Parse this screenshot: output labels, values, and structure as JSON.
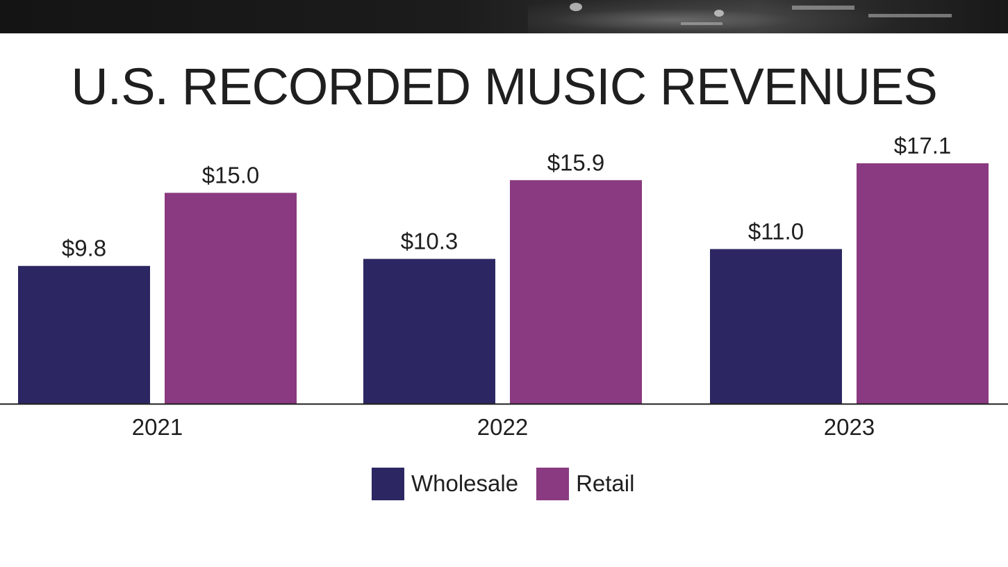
{
  "chart_data": {
    "type": "bar",
    "title": "U.S. RECORDED MUSIC REVENUES",
    "categories": [
      "2021",
      "2022",
      "2023"
    ],
    "series": [
      {
        "name": "Wholesale",
        "values": [
          9.8,
          10.3,
          11.0
        ],
        "labels": [
          "$9.8",
          "$10.3",
          "$11.0"
        ],
        "color": "#2c2762"
      },
      {
        "name": "Retail",
        "values": [
          15.0,
          15.9,
          17.1
        ],
        "labels": [
          "$15.0",
          "$15.9",
          "$17.1"
        ],
        "color": "#8a3a80"
      }
    ],
    "ylim": [
      0,
      17.1
    ],
    "grid": false,
    "legend_position": "bottom-center"
  },
  "colors": {
    "text": "#1f1f1f",
    "baseline": "#1f1f1f"
  }
}
